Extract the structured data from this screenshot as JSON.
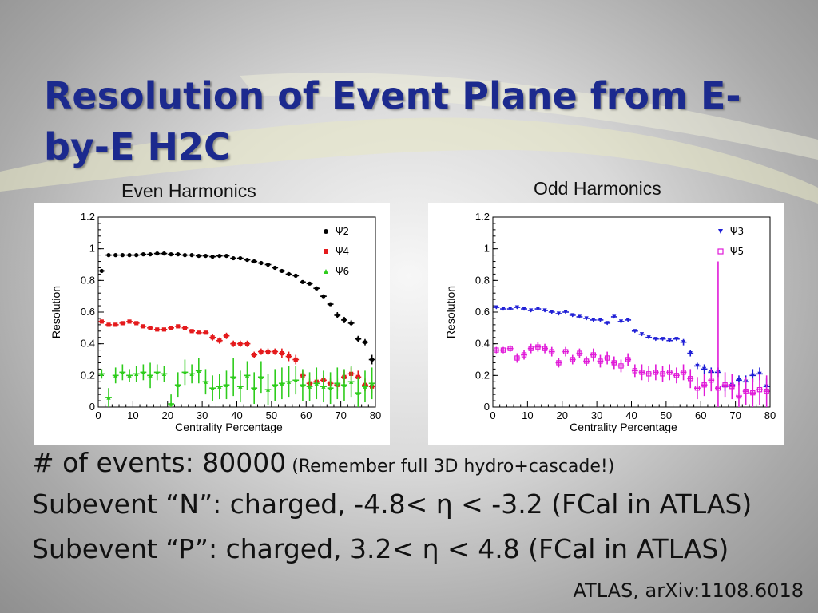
{
  "slide": {
    "title": "Resolution of Event Plane from E-by-E H2C",
    "even_caption": "Even Harmonics",
    "odd_caption": "Odd Harmonics",
    "bullets": {
      "b1_main": "# of events: 80000",
      "b1_note": " (Remember full 3D hydro+cascade!)",
      "b2": "Subevent “N”: charged, -4.8< η < -3.2 (FCal in ATLAS)",
      "b3": "Subevent “P”: charged, 3.2< η < 4.8 (FCal in ATLAS)"
    },
    "citation": "ATLAS, arXiv:1108.6018"
  },
  "chart_data": [
    {
      "type": "scatter",
      "name": "even-harmonics",
      "xlabel": "Centrality Percentage",
      "ylabel": "Resolution",
      "xlim": [
        0,
        80
      ],
      "ylim": [
        0,
        1.2
      ],
      "xticks": [
        "0",
        "10",
        "20",
        "30",
        "40",
        "50",
        "60",
        "70",
        "80"
      ],
      "yticks": [
        "0",
        "0.2",
        "0.4",
        "0.6",
        "0.8",
        "1",
        "1.2"
      ],
      "legend_position": "top-right",
      "series": [
        {
          "name": "Ψ2",
          "color": "#000000",
          "marker": "circle",
          "x": [
            1,
            3,
            5,
            7,
            9,
            11,
            13,
            15,
            17,
            19,
            21,
            23,
            25,
            27,
            29,
            31,
            33,
            35,
            37,
            39,
            41,
            43,
            45,
            47,
            49,
            51,
            53,
            55,
            57,
            59,
            61,
            63,
            65,
            67,
            69,
            71,
            73,
            75,
            77,
            79
          ],
          "y": [
            0.86,
            0.96,
            0.96,
            0.96,
            0.96,
            0.96,
            0.965,
            0.965,
            0.97,
            0.97,
            0.965,
            0.965,
            0.96,
            0.96,
            0.955,
            0.955,
            0.95,
            0.955,
            0.955,
            0.94,
            0.94,
            0.93,
            0.92,
            0.91,
            0.9,
            0.88,
            0.86,
            0.84,
            0.83,
            0.79,
            0.78,
            0.75,
            0.7,
            0.65,
            0.58,
            0.55,
            0.53,
            0.43,
            0.41,
            0.3
          ],
          "err": [
            0.01,
            0.01,
            0.01,
            0.01,
            0.01,
            0.01,
            0.01,
            0.01,
            0.01,
            0.01,
            0.01,
            0.01,
            0.01,
            0.01,
            0.01,
            0.01,
            0.01,
            0.01,
            0.01,
            0.01,
            0.01,
            0.01,
            0.01,
            0.01,
            0.01,
            0.01,
            0.01,
            0.01,
            0.01,
            0.01,
            0.01,
            0.01,
            0.01,
            0.01,
            0.02,
            0.02,
            0.02,
            0.02,
            0.02,
            0.03
          ]
        },
        {
          "name": "Ψ4",
          "color": "#e41a1c",
          "marker": "square",
          "x": [
            1,
            3,
            5,
            7,
            9,
            11,
            13,
            15,
            17,
            19,
            21,
            23,
            25,
            27,
            29,
            31,
            33,
            35,
            37,
            39,
            41,
            43,
            45,
            47,
            49,
            51,
            53,
            55,
            57,
            59,
            61,
            63,
            65,
            67,
            69,
            71,
            73,
            75,
            77,
            79
          ],
          "y": [
            0.54,
            0.52,
            0.52,
            0.53,
            0.54,
            0.53,
            0.51,
            0.5,
            0.49,
            0.49,
            0.5,
            0.51,
            0.5,
            0.48,
            0.47,
            0.47,
            0.44,
            0.42,
            0.45,
            0.4,
            0.4,
            0.4,
            0.33,
            0.35,
            0.35,
            0.35,
            0.34,
            0.32,
            0.3,
            0.2,
            0.15,
            0.16,
            0.17,
            0.15,
            0.14,
            0.19,
            0.21,
            0.19,
            0.14,
            0.13
          ],
          "err": [
            0.01,
            0.01,
            0.01,
            0.01,
            0.01,
            0.01,
            0.01,
            0.01,
            0.01,
            0.01,
            0.01,
            0.01,
            0.01,
            0.01,
            0.01,
            0.01,
            0.02,
            0.02,
            0.02,
            0.02,
            0.02,
            0.02,
            0.02,
            0.02,
            0.02,
            0.02,
            0.03,
            0.03,
            0.03,
            0.03,
            0.03,
            0.03,
            0.03,
            0.03,
            0.04,
            0.04,
            0.04,
            0.04,
            0.04,
            0.04
          ]
        },
        {
          "name": "Ψ6",
          "color": "#2ecc1c",
          "marker": "triangle",
          "x": [
            1,
            3,
            5,
            7,
            9,
            11,
            13,
            15,
            17,
            19,
            21,
            23,
            25,
            27,
            29,
            31,
            33,
            35,
            37,
            39,
            41,
            43,
            45,
            47,
            49,
            51,
            53,
            55,
            57,
            59,
            61,
            63,
            65,
            67,
            69,
            71,
            73,
            75,
            77,
            79
          ],
          "y": [
            0.21,
            0.06,
            0.2,
            0.22,
            0.2,
            0.21,
            0.22,
            0.2,
            0.22,
            0.21,
            0.02,
            0.14,
            0.22,
            0.21,
            0.23,
            0.16,
            0.12,
            0.13,
            0.14,
            0.19,
            0.13,
            0.2,
            0.12,
            0.19,
            0.11,
            0.14,
            0.15,
            0.16,
            0.17,
            0.14,
            0.13,
            0.15,
            0.13,
            0.12,
            0.15,
            0.14,
            0.16,
            0.09,
            0.13,
            0.15
          ],
          "err": [
            0.03,
            0.06,
            0.05,
            0.05,
            0.04,
            0.05,
            0.05,
            0.08,
            0.05,
            0.05,
            0.06,
            0.08,
            0.08,
            0.06,
            0.08,
            0.08,
            0.08,
            0.08,
            0.09,
            0.12,
            0.1,
            0.09,
            0.1,
            0.1,
            0.1,
            0.1,
            0.1,
            0.1,
            0.09,
            0.1,
            0.09,
            0.1,
            0.1,
            0.1,
            0.1,
            0.1,
            0.1,
            0.1,
            0.1,
            0.1
          ]
        }
      ]
    },
    {
      "type": "scatter",
      "name": "odd-harmonics",
      "xlabel": "Centrality Percentage",
      "ylabel": "Resolution",
      "xlim": [
        0,
        80
      ],
      "ylim": [
        0,
        1.2
      ],
      "xticks": [
        "0",
        "10",
        "20",
        "30",
        "40",
        "50",
        "60",
        "70",
        "80"
      ],
      "yticks": [
        "0",
        "0.2",
        "0.4",
        "0.6",
        "0.8",
        "1",
        "1.2"
      ],
      "legend_position": "top-right",
      "series": [
        {
          "name": "Ψ3",
          "color": "#1f1fd6",
          "marker": "triangle-down",
          "x": [
            1,
            3,
            5,
            7,
            9,
            11,
            13,
            15,
            17,
            19,
            21,
            23,
            25,
            27,
            29,
            31,
            33,
            35,
            37,
            39,
            41,
            43,
            45,
            47,
            49,
            51,
            53,
            55,
            57,
            59,
            61,
            63,
            65,
            67,
            69,
            71,
            73,
            75,
            77,
            79
          ],
          "y": [
            0.63,
            0.62,
            0.62,
            0.63,
            0.62,
            0.61,
            0.62,
            0.61,
            0.6,
            0.59,
            0.6,
            0.58,
            0.57,
            0.56,
            0.55,
            0.55,
            0.53,
            0.57,
            0.54,
            0.55,
            0.48,
            0.46,
            0.44,
            0.43,
            0.43,
            0.42,
            0.43,
            0.41,
            0.34,
            0.26,
            0.24,
            0.22,
            0.22,
            0.13,
            0.14,
            0.17,
            0.16,
            0.2,
            0.21,
            0.13
          ],
          "err": [
            0.01,
            0.01,
            0.01,
            0.01,
            0.01,
            0.01,
            0.01,
            0.01,
            0.01,
            0.01,
            0.01,
            0.01,
            0.01,
            0.01,
            0.01,
            0.01,
            0.01,
            0.01,
            0.01,
            0.01,
            0.01,
            0.01,
            0.01,
            0.01,
            0.01,
            0.01,
            0.01,
            0.02,
            0.02,
            0.02,
            0.03,
            0.03,
            0.03,
            0.03,
            0.03,
            0.03,
            0.04,
            0.04,
            0.04,
            0.05
          ]
        },
        {
          "name": "Ψ5",
          "color": "#e01ad8",
          "marker": "square-open",
          "x": [
            1,
            3,
            5,
            7,
            9,
            11,
            13,
            15,
            17,
            19,
            21,
            23,
            25,
            27,
            29,
            31,
            33,
            35,
            37,
            39,
            41,
            43,
            45,
            47,
            49,
            51,
            53,
            55,
            57,
            59,
            61,
            63,
            65,
            67,
            69,
            71,
            73,
            75,
            77,
            79
          ],
          "y": [
            0.36,
            0.36,
            0.37,
            0.31,
            0.33,
            0.37,
            0.38,
            0.37,
            0.35,
            0.28,
            0.35,
            0.3,
            0.34,
            0.29,
            0.33,
            0.29,
            0.31,
            0.28,
            0.26,
            0.3,
            0.23,
            0.22,
            0.21,
            0.22,
            0.21,
            0.22,
            0.2,
            0.22,
            0.18,
            0.12,
            0.14,
            0.17,
            0.12,
            0.14,
            0.13,
            0.07,
            0.1,
            0.09,
            0.11,
            0.1
          ],
          "err": [
            0.02,
            0.02,
            0.02,
            0.03,
            0.03,
            0.03,
            0.03,
            0.03,
            0.03,
            0.03,
            0.03,
            0.03,
            0.03,
            0.03,
            0.04,
            0.04,
            0.04,
            0.04,
            0.04,
            0.04,
            0.04,
            0.05,
            0.05,
            0.05,
            0.05,
            0.05,
            0.05,
            0.05,
            0.06,
            0.07,
            0.07,
            0.07,
            0.8,
            0.08,
            0.08,
            0.09,
            0.09,
            0.09,
            0.1,
            0.1
          ]
        }
      ]
    }
  ]
}
